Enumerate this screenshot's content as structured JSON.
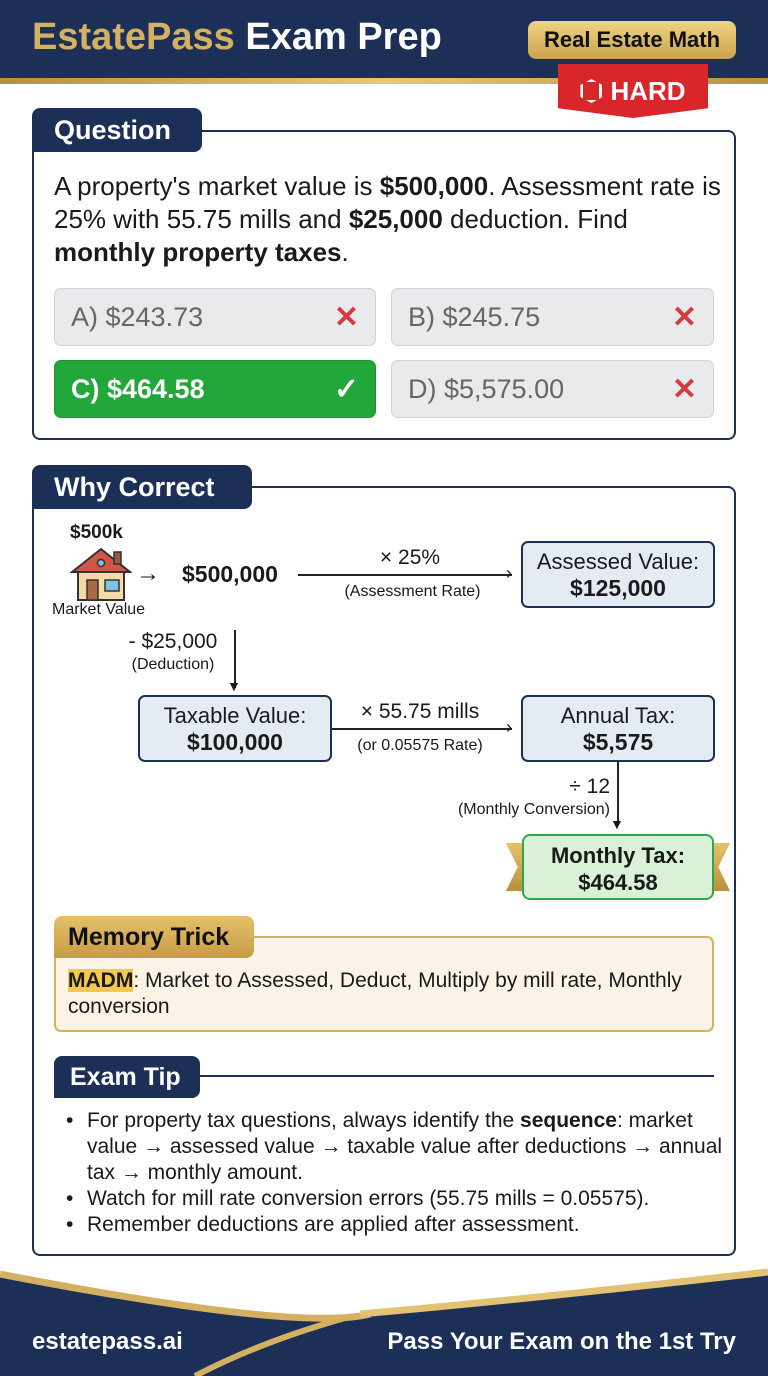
{
  "header": {
    "brand": "EstatePass",
    "title_rest": "Exam Prep",
    "category_badge": "Real Estate Math",
    "difficulty": "HARD"
  },
  "question": {
    "tab": "Question",
    "text_parts": [
      "A property's market value is ",
      "$500,000",
      ". Assessment rate is 25% with 55.75 mills and ",
      "$25,000",
      " deduction. Find ",
      "monthly property taxes",
      "."
    ],
    "options": [
      {
        "label": "A) $243.73",
        "correct": false
      },
      {
        "label": "B) $245.75",
        "correct": false
      },
      {
        "label": "C) $464.58",
        "correct": true
      },
      {
        "label": "D) $5,575.00",
        "correct": false
      }
    ]
  },
  "why": {
    "tab": "Why Correct",
    "diagram": {
      "house_value": "$500k",
      "house_caption": "Market Value",
      "market": "$500,000",
      "rate_op": "× 25%",
      "rate_note": "(Assessment Rate)",
      "assessed_label": "Assessed Value:",
      "assessed_value": "$125,000",
      "deduct_op": "- $25,000",
      "deduct_note": "(Deduction)",
      "taxable_label": "Taxable Value:",
      "taxable_value": "$100,000",
      "mill_op": "× 55.75 mills",
      "mill_note": "(or 0.05575 Rate)",
      "annual_label": "Annual Tax:",
      "annual_value": "$5,575",
      "div_op": "÷ 12",
      "div_note": "(Monthly Conversion)",
      "monthly_label": "Monthly Tax:",
      "monthly_value": "$464.58"
    }
  },
  "memory": {
    "tab": "Memory Trick",
    "acronym": "MADM",
    "rest": ": Market to Assessed, Deduct, Multiply by mill rate, Monthly conversion"
  },
  "tip": {
    "tab": "Exam Tip",
    "bullets": [
      {
        "pre": "For property tax questions, always identify the ",
        "bold": "sequence",
        "post": ": market value → assessed value → taxable value after deductions → annual tax → monthly amount."
      },
      {
        "pre": "Watch for mill rate conversion errors (55.75 mills = 0.05575).",
        "bold": "",
        "post": ""
      },
      {
        "pre": "Remember deductions are applied after assessment.",
        "bold": "",
        "post": ""
      }
    ]
  },
  "footer": {
    "site": "estatepass.ai",
    "slogan": "Pass Your Exam on the 1st Try"
  },
  "colors": {
    "navy": "#1b2f57",
    "gold": "#d4b062",
    "correct": "#22a83a",
    "wrong": "#d8393f",
    "hard": "#d8262b"
  }
}
